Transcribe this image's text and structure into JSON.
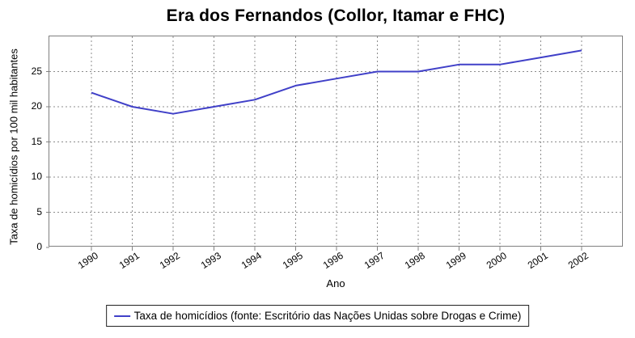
{
  "chart_data": {
    "type": "line",
    "title": "Era dos Fernandos (Collor, Itamar e FHC)",
    "xlabel": "Ano",
    "ylabel": "Taxa de homicídios por 100 mil habitantes",
    "x": [
      1990,
      1991,
      1992,
      1993,
      1994,
      1995,
      1996,
      1997,
      1998,
      1999,
      2000,
      2001,
      2002
    ],
    "series": [
      {
        "name": "Taxa de homicídios (fonte: Escritório das Nações Unidas sobre Drogas e Crime)",
        "values": [
          22,
          20,
          19,
          20,
          21,
          23,
          24,
          25,
          25,
          26,
          26,
          27,
          28
        ]
      }
    ],
    "ylim": [
      0,
      30
    ],
    "yticks": [
      0,
      5,
      10,
      15,
      20,
      25
    ],
    "grid": true,
    "legend_position": "bottom"
  },
  "legend": {
    "label": "Taxa de homicídios (fonte: Escritório das Nações Unidas sobre Drogas e Crime)"
  },
  "colors": {
    "line": "#4040C8",
    "grid": "#8C8C8C",
    "plot_border": "#808080",
    "tick": "#808080",
    "text": "#000000"
  }
}
